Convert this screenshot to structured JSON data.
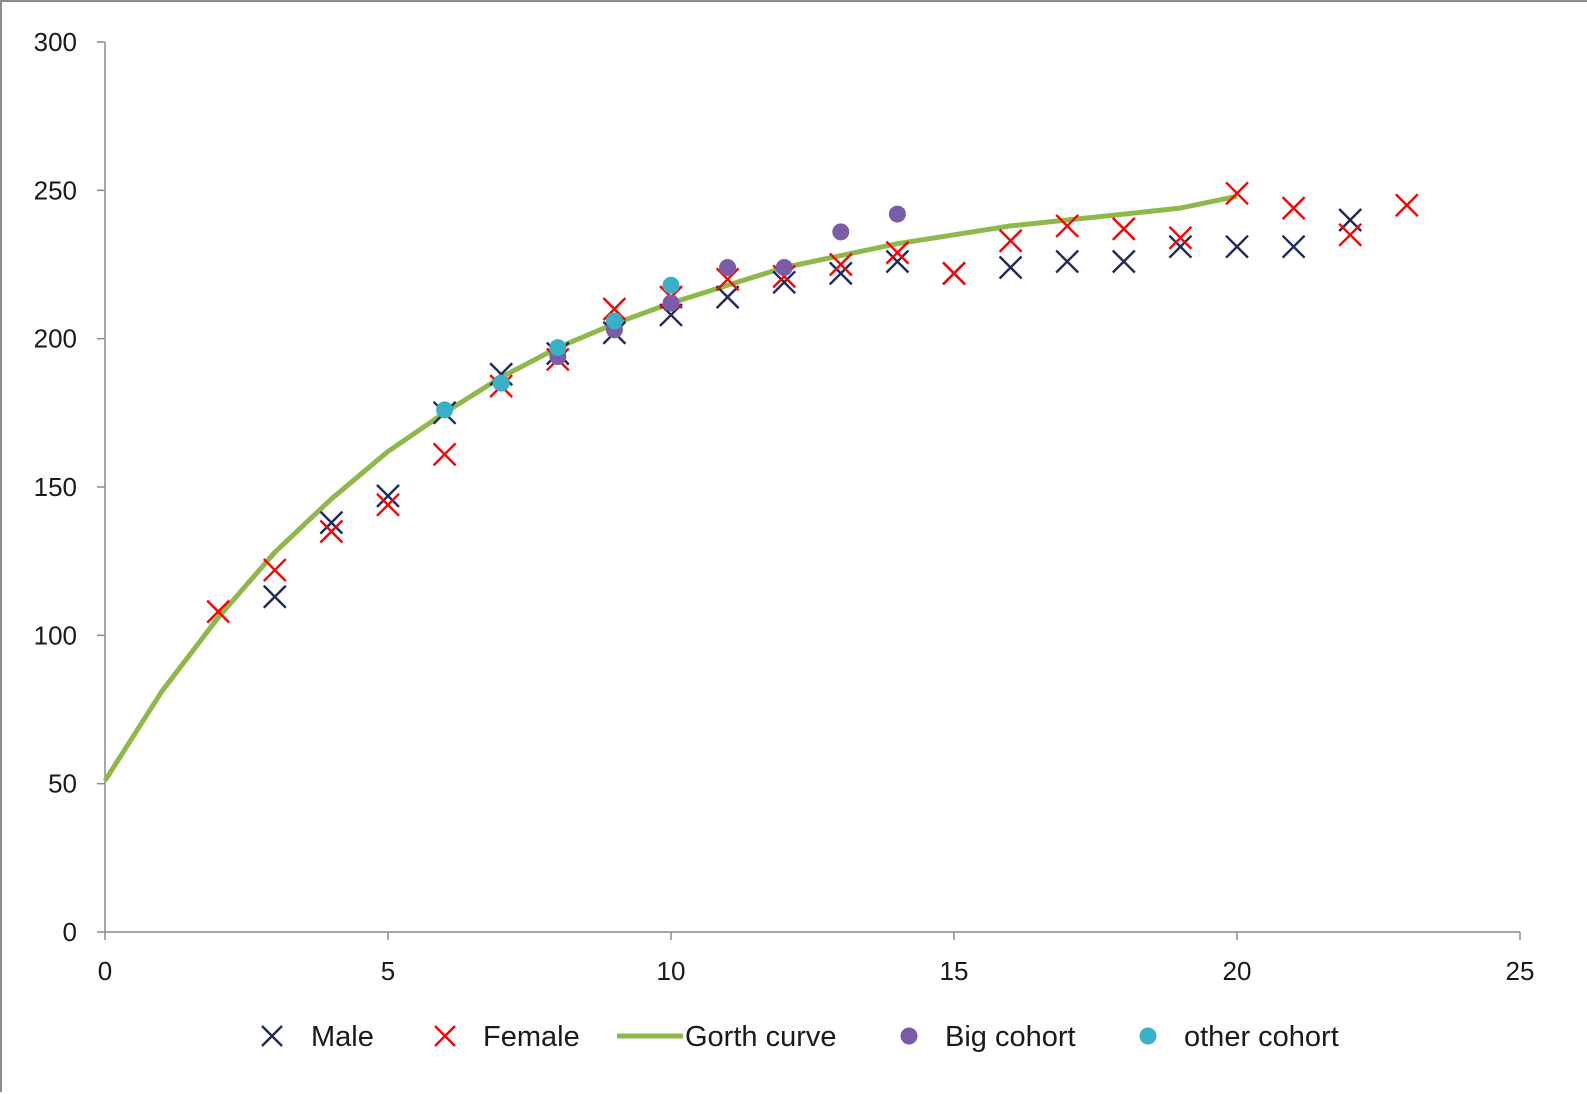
{
  "chart_data": {
    "type": "scatter",
    "title": "",
    "xlabel": "",
    "ylabel": "",
    "xlim": [
      0,
      25
    ],
    "ylim": [
      0,
      300
    ],
    "xticks": [
      0,
      5,
      10,
      15,
      20,
      25
    ],
    "yticks": [
      0,
      50,
      100,
      150,
      200,
      250,
      300
    ],
    "grid": false,
    "legend_position": "bottom",
    "series": [
      {
        "name": "Male",
        "kind": "scatter",
        "marker": "x",
        "color": "#1f2a5c",
        "points": [
          [
            3,
            113
          ],
          [
            4,
            138
          ],
          [
            5,
            147
          ],
          [
            6,
            175
          ],
          [
            7,
            188
          ],
          [
            8,
            195
          ],
          [
            9,
            202
          ],
          [
            10,
            208
          ],
          [
            11,
            214
          ],
          [
            12,
            219
          ],
          [
            13,
            222
          ],
          [
            14,
            226
          ],
          [
            15,
            222
          ],
          [
            16,
            224
          ],
          [
            17,
            226
          ],
          [
            18,
            226
          ],
          [
            19,
            231
          ],
          [
            20,
            231
          ],
          [
            21,
            231
          ],
          [
            22,
            240
          ]
        ]
      },
      {
        "name": "Female",
        "kind": "scatter",
        "marker": "x",
        "color": "#ff0000",
        "points": [
          [
            2,
            108
          ],
          [
            3,
            122
          ],
          [
            4,
            135
          ],
          [
            5,
            144
          ],
          [
            6,
            161
          ],
          [
            7,
            184
          ],
          [
            8,
            193
          ],
          [
            9,
            210
          ],
          [
            10,
            214
          ],
          [
            11,
            220
          ],
          [
            12,
            221
          ],
          [
            13,
            225
          ],
          [
            14,
            229
          ],
          [
            15,
            222
          ],
          [
            16,
            233
          ],
          [
            17,
            238
          ],
          [
            18,
            237
          ],
          [
            19,
            234
          ],
          [
            20,
            249
          ],
          [
            21,
            244
          ],
          [
            22,
            235
          ],
          [
            23,
            245
          ]
        ]
      },
      {
        "name": "Gorth curve",
        "kind": "line",
        "color": "#8fb84a",
        "points": [
          [
            0,
            51
          ],
          [
            1,
            81
          ],
          [
            2,
            106
          ],
          [
            3,
            128
          ],
          [
            4,
            146
          ],
          [
            5,
            162
          ],
          [
            6,
            175
          ],
          [
            7,
            187
          ],
          [
            8,
            197
          ],
          [
            9,
            205
          ],
          [
            10,
            212
          ],
          [
            11,
            218
          ],
          [
            12,
            224
          ],
          [
            13,
            228
          ],
          [
            14,
            232
          ],
          [
            15,
            235
          ],
          [
            16,
            238
          ],
          [
            17,
            240
          ],
          [
            18,
            242
          ],
          [
            19,
            244
          ],
          [
            20,
            248
          ]
        ]
      },
      {
        "name": "Big cohort",
        "kind": "scatter",
        "marker": "circle",
        "color": "#7b5ca8",
        "points": [
          [
            8,
            194
          ],
          [
            9,
            203
          ],
          [
            10,
            212
          ],
          [
            11,
            224
          ],
          [
            12,
            224
          ],
          [
            13,
            236
          ],
          [
            14,
            242
          ]
        ]
      },
      {
        "name": "other cohort",
        "kind": "scatter",
        "marker": "circle",
        "color": "#3ab0c8",
        "points": [
          [
            6,
            176
          ],
          [
            7,
            185
          ],
          [
            8,
            197
          ],
          [
            9,
            206
          ],
          [
            10,
            218
          ]
        ]
      }
    ]
  }
}
